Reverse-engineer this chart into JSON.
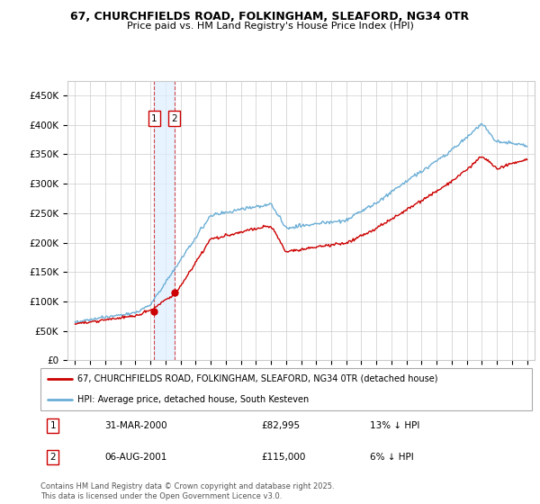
{
  "title1": "67, CHURCHFIELDS ROAD, FOLKINGHAM, SLEAFORD, NG34 0TR",
  "title2": "Price paid vs. HM Land Registry's House Price Index (HPI)",
  "background_color": "#ffffff",
  "grid_color": "#cccccc",
  "hpi_color": "#6baed6",
  "price_color": "#cc0000",
  "vline_color": "#cc0000",
  "vfill_color": "#ddeeff",
  "transactions": [
    {
      "label": "1",
      "date_x": 2000.25,
      "price": 82995,
      "year_str": "31-MAR-2000",
      "pct": "13%",
      "dir": "↓"
    },
    {
      "label": "2",
      "date_x": 2001.59,
      "price": 115000,
      "year_str": "06-AUG-2001",
      "pct": "6%",
      "dir": "↓"
    }
  ],
  "legend_entries": [
    {
      "label": "67, CHURCHFIELDS ROAD, FOLKINGHAM, SLEAFORD, NG34 0TR (detached house)",
      "color": "#cc0000"
    },
    {
      "label": "HPI: Average price, detached house, South Kesteven",
      "color": "#6baed6"
    }
  ],
  "footnote": "Contains HM Land Registry data © Crown copyright and database right 2025.\nThis data is licensed under the Open Government Licence v3.0.",
  "ylim": [
    0,
    475000
  ],
  "yticks": [
    0,
    50000,
    100000,
    150000,
    200000,
    250000,
    300000,
    350000,
    400000,
    450000
  ],
  "ytick_labels": [
    "£0",
    "£50K",
    "£100K",
    "£150K",
    "£200K",
    "£250K",
    "£300K",
    "£350K",
    "£400K",
    "£450K"
  ],
  "xlim": [
    1994.5,
    2025.5
  ],
  "xticks": [
    1995,
    1996,
    1997,
    1998,
    1999,
    2000,
    2001,
    2002,
    2003,
    2004,
    2005,
    2006,
    2007,
    2008,
    2009,
    2010,
    2011,
    2012,
    2013,
    2014,
    2015,
    2016,
    2017,
    2018,
    2019,
    2020,
    2021,
    2022,
    2023,
    2024,
    2025
  ]
}
